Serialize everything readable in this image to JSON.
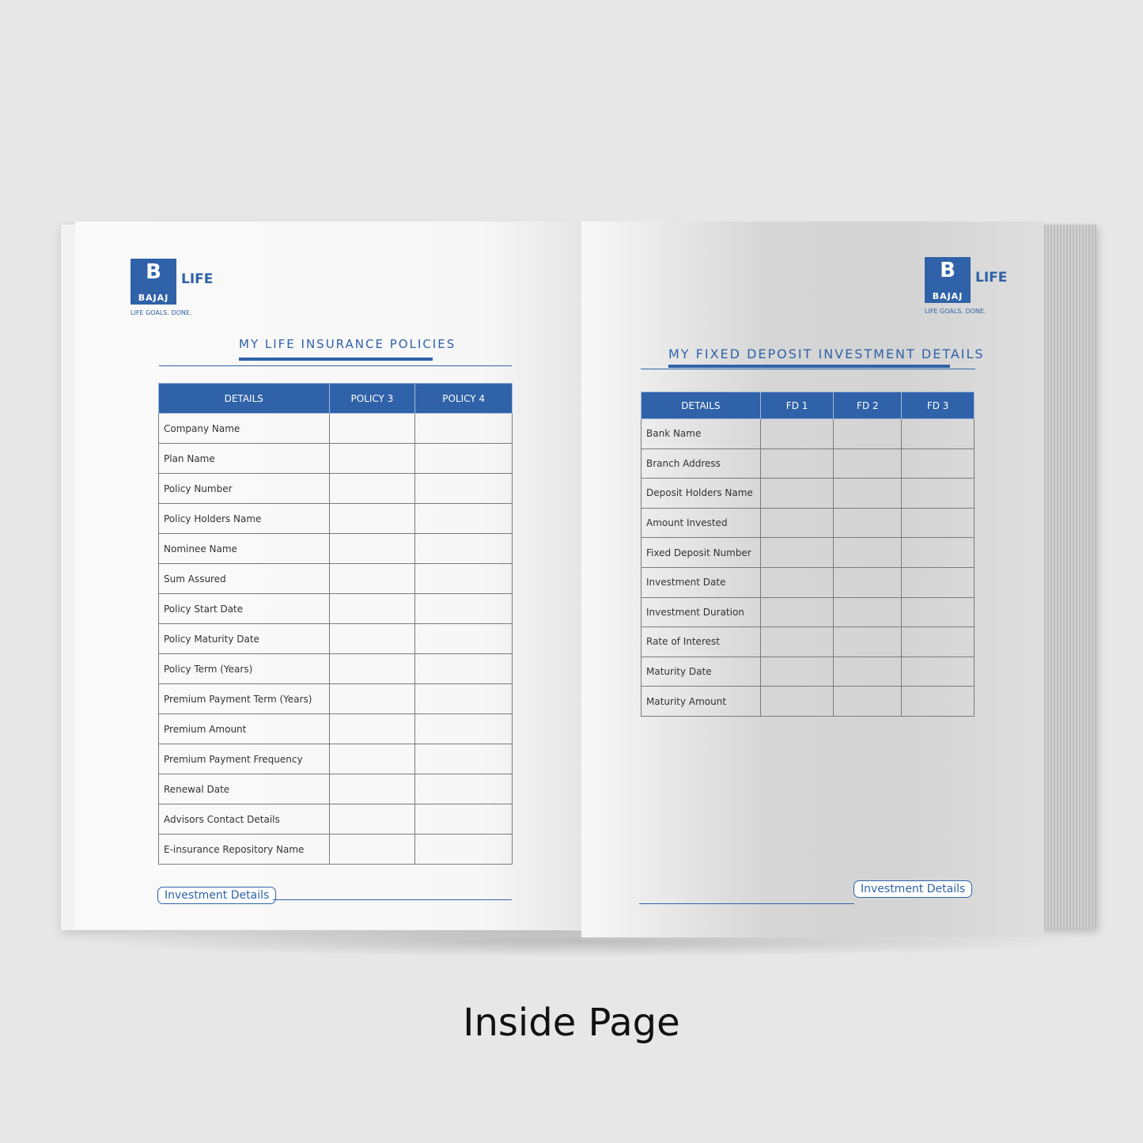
{
  "left_page": {
    "logo": {
      "mark": "B",
      "brand": "BAJAJ",
      "product": "LIFE",
      "tagline": "LIFE GOALS. DONE."
    },
    "title": "MY LIFE INSURANCE POLICIES",
    "table": {
      "headers": [
        "DETAILS",
        "POLICY 3",
        "POLICY 4"
      ],
      "rows": [
        "Company Name",
        "Plan Name",
        "Policy Number",
        "Policy Holders Name",
        "Nominee Name",
        "Sum Assured",
        "Policy Start Date",
        "Policy Maturity Date",
        "Policy Term (Years)",
        "Premium Payment Term (Years)",
        "Premium Amount",
        "Premium Payment Frequency",
        "Renewal Date",
        "Advisors Contact Details",
        "E-insurance Repository Name"
      ]
    },
    "footer_tag": "Investment Details"
  },
  "right_page": {
    "logo": {
      "mark": "B",
      "brand": "BAJAJ",
      "product": "LIFE",
      "tagline": "LIFE GOALS. DONE."
    },
    "title": "MY FIXED DEPOSIT INVESTMENT DETAILS",
    "table": {
      "headers": [
        "DETAILS",
        "FD 1",
        "FD 2",
        "FD 3"
      ],
      "rows": [
        "Bank Name",
        "Branch Address",
        "Deposit Holders Name",
        "Amount Invested",
        "Fixed Deposit Number",
        "Investment Date",
        "Investment Duration",
        "Rate of Interest",
        "Maturity Date",
        "Maturity Amount"
      ]
    },
    "footer_tag": "Investment Details"
  },
  "caption": "Inside Page",
  "colors": {
    "brand_blue": "#2f62a8",
    "background": "#e7e7e7"
  }
}
